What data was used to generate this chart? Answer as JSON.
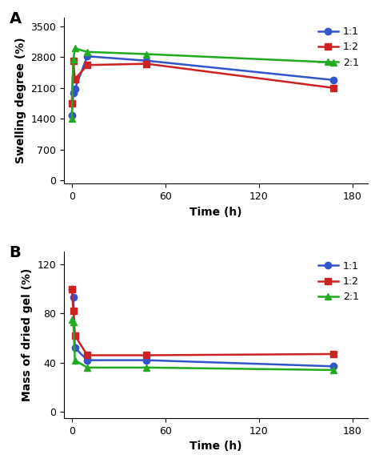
{
  "time_A": [
    0,
    1,
    2,
    10,
    48,
    168
  ],
  "A_11": [
    1480,
    1980,
    2080,
    2820,
    2720,
    2280
  ],
  "A_12": [
    1750,
    2720,
    2300,
    2620,
    2650,
    2100
  ],
  "A_21": [
    1400,
    2750,
    3000,
    2920,
    2870,
    2680
  ],
  "time_B": [
    0,
    1,
    2,
    10,
    48,
    168
  ],
  "B_11": [
    100,
    93,
    52,
    42,
    42,
    37
  ],
  "B_12": [
    100,
    82,
    62,
    46,
    46,
    47
  ],
  "B_21": [
    75,
    73,
    42,
    36,
    36,
    34
  ],
  "color_11": "#3355cc",
  "color_12": "#cc2222",
  "color_21": "#22aa22",
  "label_11": "1:1",
  "label_12": "1:2",
  "label_21": "2:1",
  "xlabel": "Time (h)",
  "ylabel_A": "Swelling degree (%)",
  "ylabel_B": "Mass of dried gel (%)",
  "xlim": [
    -5,
    190
  ],
  "xticks": [
    0,
    60,
    120,
    180
  ],
  "ylim_A": [
    -80,
    3700
  ],
  "yticks_A": [
    0,
    700,
    1400,
    2100,
    2800,
    3500
  ],
  "ylim_B": [
    -5,
    130
  ],
  "yticks_B": [
    0,
    40,
    80,
    120
  ],
  "label_A": "A",
  "label_B": "B",
  "bg_color": "#ffffff",
  "fig_bg": "#ffffff"
}
